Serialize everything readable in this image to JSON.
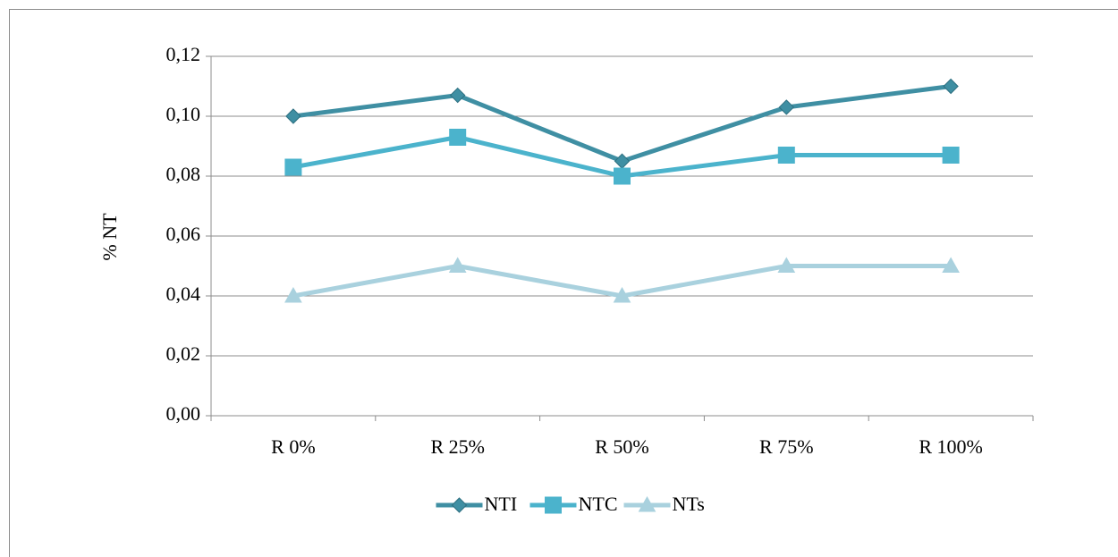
{
  "chart_data": {
    "type": "line",
    "y_label": "% NT",
    "categories": [
      "R 0%",
      "R 25%",
      "R 50%",
      "R 75%",
      "R 100%"
    ],
    "series": [
      {
        "name": "NTI",
        "color": "#3f8fa3",
        "marker": "diamond",
        "values": [
          0.1,
          0.107,
          0.085,
          0.103,
          0.11
        ]
      },
      {
        "name": "NTC",
        "color": "#4bb3cc",
        "marker": "square",
        "values": [
          0.083,
          0.093,
          0.08,
          0.087,
          0.087
        ]
      },
      {
        "name": "NTs",
        "color": "#a9d1de",
        "marker": "triangle",
        "values": [
          0.04,
          0.05,
          0.04,
          0.05,
          0.05
        ]
      }
    ],
    "ylim": [
      0,
      0.12
    ],
    "yticks": [
      {
        "value": 0,
        "label": "0,00"
      },
      {
        "value": 0.02,
        "label": "0,02"
      },
      {
        "value": 0.04,
        "label": "0,04"
      },
      {
        "value": 0.06,
        "label": "0,06"
      },
      {
        "value": 0.08,
        "label": "0,08"
      },
      {
        "value": 0.1,
        "label": "0,10"
      },
      {
        "value": 0.12,
        "label": "0,12"
      }
    ],
    "grid": true,
    "legend": "bottom"
  }
}
